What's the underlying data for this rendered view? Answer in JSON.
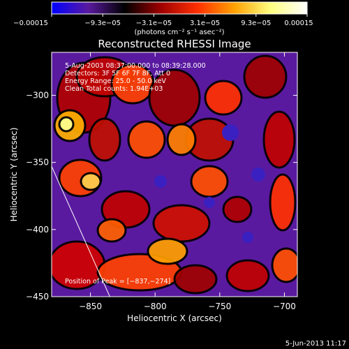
{
  "chart_data": {
    "type": "heatmap",
    "title": "Reconstructed RHESSI Image",
    "xlabel": "Heliocentric X (arcsec)",
    "ylabel": "Heliocentric Y (arcsec)",
    "xlim": [
      -880,
      -690
    ],
    "ylim": [
      -450,
      -268
    ],
    "x_ticks": [
      {
        "value": -850,
        "label": "−850"
      },
      {
        "value": -800,
        "label": "−800"
      },
      {
        "value": -750,
        "label": "−750"
      },
      {
        "value": -700,
        "label": "−700"
      }
    ],
    "y_ticks": [
      {
        "value": -300,
        "label": "−300"
      },
      {
        "value": -350,
        "label": "−350"
      },
      {
        "value": -400,
        "label": "−400"
      },
      {
        "value": -450,
        "label": "−450"
      }
    ],
    "colorbar": {
      "min": -0.00015,
      "max": 0.00015,
      "tick_labels": [
        "−0.00015",
        "−9.3e−05",
        "−3.1e−05",
        "3.1e−05",
        "9.3e−05",
        "0.00015"
      ],
      "units_text": "(photons cm⁻² s⁻¹ asec⁻²)",
      "stops": [
        "#0000ff",
        "#5a1aa0",
        "#000000",
        "#a00000",
        "#ff3000",
        "#ffa000",
        "#ffff80",
        "#ffffff"
      ]
    },
    "annotations": [
      "5-Aug-2003 08:37:00.000 to 08:39:28.000",
      "Detectors: 3F 5F 6F 7F 8F, Att 0",
      "Energy Range: 25.0 - 50.0 keV",
      "Clean    Total counts: 1.94E+03"
    ],
    "peak_label": "Position of Peak = [−837,−274]",
    "peak": {
      "x": -837,
      "y": -274
    },
    "limb_line": [
      {
        "x": -880,
        "y": -353
      },
      {
        "x": -835,
        "y": -450
      }
    ]
  },
  "footer": {
    "timestamp": "5-Jun-2013 11:17"
  }
}
